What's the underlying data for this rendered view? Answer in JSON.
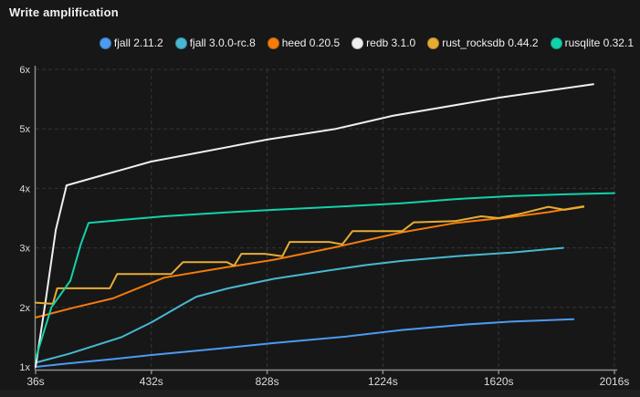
{
  "theme": {
    "background": "#171717",
    "grid_color": "#353535",
    "axis_color": "#8f8f8f",
    "text_color": "#f0f0f0"
  },
  "chart_data": {
    "type": "line",
    "title": "Write amplification",
    "xlabel": "",
    "ylabel": "",
    "xlim": [
      36,
      2016
    ],
    "ylim": [
      1,
      6
    ],
    "grid": "dashed",
    "legend_position": "top",
    "x_ticks": [
      {
        "value": 36,
        "label": "36s"
      },
      {
        "value": 432,
        "label": "432s"
      },
      {
        "value": 828,
        "label": "828s"
      },
      {
        "value": 1224,
        "label": "1224s"
      },
      {
        "value": 1620,
        "label": "1620s"
      },
      {
        "value": 2016,
        "label": "2016s"
      }
    ],
    "y_ticks": [
      {
        "value": 1,
        "label": "1x"
      },
      {
        "value": 2,
        "label": "2x"
      },
      {
        "value": 3,
        "label": "3x"
      },
      {
        "value": 4,
        "label": "4x"
      },
      {
        "value": 5,
        "label": "5x"
      },
      {
        "value": 6,
        "label": "6x"
      }
    ],
    "series": [
      {
        "name": "fjall 2.11.2",
        "color": "#4d9af0",
        "points": [
          [
            36,
            1.0
          ],
          [
            150,
            1.06
          ],
          [
            300,
            1.13
          ],
          [
            432,
            1.2
          ],
          [
            650,
            1.3
          ],
          [
            851,
            1.4
          ],
          [
            1100,
            1.51
          ],
          [
            1288,
            1.62
          ],
          [
            1500,
            1.71
          ],
          [
            1663,
            1.76
          ],
          [
            1876,
            1.8
          ]
        ]
      },
      {
        "name": "fjall 3.0.0-rc.8",
        "color": "#48b8d2",
        "points": [
          [
            36,
            1.07
          ],
          [
            150,
            1.22
          ],
          [
            330,
            1.5
          ],
          [
            433,
            1.75
          ],
          [
            539,
            2.05
          ],
          [
            586,
            2.18
          ],
          [
            695,
            2.32
          ],
          [
            851,
            2.48
          ],
          [
            1038,
            2.62
          ],
          [
            1164,
            2.71
          ],
          [
            1288,
            2.78
          ],
          [
            1475,
            2.86
          ],
          [
            1663,
            2.92
          ],
          [
            1841,
            3.0
          ]
        ]
      },
      {
        "name": "heed 0.20.5",
        "color": "#f57c0b",
        "points": [
          [
            36,
            1.83
          ],
          [
            170,
            2.0
          ],
          [
            300,
            2.15
          ],
          [
            476,
            2.5
          ],
          [
            695,
            2.68
          ],
          [
            851,
            2.8
          ],
          [
            1050,
            3.0
          ],
          [
            1288,
            3.26
          ],
          [
            1475,
            3.42
          ],
          [
            1663,
            3.52
          ],
          [
            1790,
            3.6
          ],
          [
            1910,
            3.7
          ]
        ]
      },
      {
        "name": "redb 3.1.0",
        "color": "#efefef",
        "points": [
          [
            36,
            1.0
          ],
          [
            70,
            2.1
          ],
          [
            105,
            3.3
          ],
          [
            142,
            4.05
          ],
          [
            430,
            4.45
          ],
          [
            829,
            4.82
          ],
          [
            1063,
            5.0
          ],
          [
            1257,
            5.22
          ],
          [
            1616,
            5.52
          ],
          [
            1944,
            5.75
          ]
        ]
      },
      {
        "name": "rust_rocksdb 0.44.2",
        "color": "#e6ad35",
        "points": [
          [
            36,
            2.08
          ],
          [
            95,
            2.06
          ],
          [
            110,
            2.32
          ],
          [
            290,
            2.32
          ],
          [
            315,
            2.56
          ],
          [
            500,
            2.56
          ],
          [
            540,
            2.76
          ],
          [
            690,
            2.76
          ],
          [
            715,
            2.7
          ],
          [
            740,
            2.9
          ],
          [
            820,
            2.9
          ],
          [
            880,
            2.86
          ],
          [
            905,
            3.1
          ],
          [
            1040,
            3.1
          ],
          [
            1085,
            3.06
          ],
          [
            1120,
            3.28
          ],
          [
            1290,
            3.28
          ],
          [
            1330,
            3.43
          ],
          [
            1470,
            3.45
          ],
          [
            1560,
            3.53
          ],
          [
            1620,
            3.5
          ],
          [
            1700,
            3.58
          ],
          [
            1790,
            3.69
          ],
          [
            1845,
            3.64
          ],
          [
            1910,
            3.69
          ]
        ]
      },
      {
        "name": "rusqlite 0.32.1",
        "color": "#12d2a9",
        "points": [
          [
            36,
            1.14
          ],
          [
            90,
            2.0
          ],
          [
            155,
            2.45
          ],
          [
            190,
            3.05
          ],
          [
            217,
            3.42
          ],
          [
            330,
            3.47
          ],
          [
            476,
            3.53
          ],
          [
            700,
            3.6
          ],
          [
            851,
            3.64
          ],
          [
            1100,
            3.7
          ],
          [
            1288,
            3.75
          ],
          [
            1475,
            3.82
          ],
          [
            1663,
            3.87
          ],
          [
            1850,
            3.9
          ],
          [
            2016,
            3.92
          ]
        ]
      }
    ]
  }
}
